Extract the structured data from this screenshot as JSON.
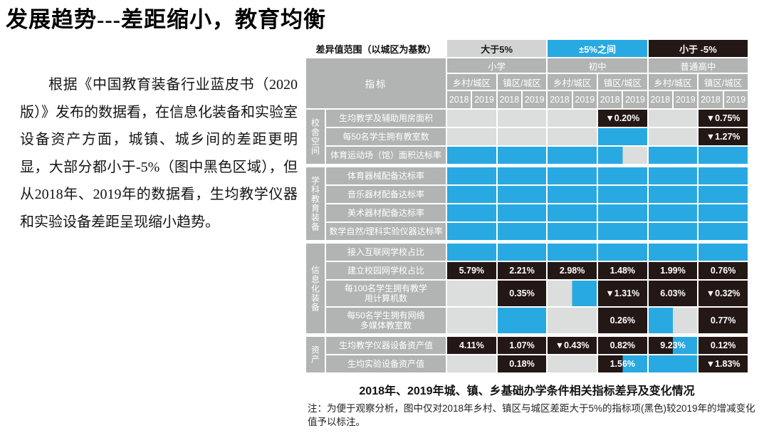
{
  "slide": {
    "title": "发展趋势---差距缩小，教育均衡",
    "paragraph": "根据《中国教育装备行业蓝皮书（2020版）》发布的数据看，在信息化装备和实验室设备资产方面，城镇、城乡间的差距更明显，大部分都小于-5%（图中黑色区域），但从2018年、2019年的数据看，生均教学仪器和实验设备差距呈现缩小趋势。",
    "caption": "2018年、2019年城、镇、乡基础办学条件相关指标差异及变化情况",
    "note": "注：为便于观察分析，图中仅对2018年乡村、镇区与城区差距大于5%的指标项(黑色)较2019年的增减变化值予以标注。"
  },
  "table": {
    "colors": {
      "gray": "#dcdddd",
      "blue": "#29a9e1",
      "black": "#231815",
      "header": "#b2b3b3"
    },
    "legend": {
      "label": "差异值范围（以城区为基数）",
      "items": [
        {
          "text": "大于5%",
          "bg": "#d2d3d3",
          "fg": "#1a1a1a"
        },
        {
          "text": "±5%之间",
          "bg": "#29a9e1",
          "fg": "#ffffff"
        },
        {
          "text": "小于 -5%",
          "bg": "#231815",
          "fg": "#ffffff"
        }
      ]
    },
    "header": {
      "indicator": "指标",
      "levels": [
        "小学",
        "初中",
        "普通高中"
      ],
      "subgroups": [
        "乡村/城区",
        "镇区/城区"
      ],
      "years": [
        "2018",
        "2019"
      ]
    },
    "groups": [
      {
        "label": "校舍空间",
        "rows": [
          {
            "label": "生均教学及辅助用房面积",
            "cells": [
              [
                "gray",
                "gray",
                ""
              ],
              [
                "gray",
                "gray",
                ""
              ],
              [
                "gray",
                "gray",
                ""
              ],
              [
                "black",
                "black",
                "▼0.20%"
              ],
              [
                "gray",
                "gray",
                ""
              ],
              [
                "black",
                "black",
                "▼0.75%"
              ]
            ]
          },
          {
            "label": "每50名学生拥有教室数",
            "cells": [
              [
                "gray",
                "gray",
                ""
              ],
              [
                "gray",
                "gray",
                ""
              ],
              [
                "gray",
                "gray",
                ""
              ],
              [
                "blue",
                "blue",
                ""
              ],
              [
                "gray",
                "gray",
                ""
              ],
              [
                "black",
                "black",
                "▼1.27%"
              ]
            ]
          },
          {
            "label": "体育运动场（馆）面积达标率",
            "cells": [
              [
                "blue",
                "blue",
                ""
              ],
              [
                "blue",
                "blue",
                ""
              ],
              [
                "blue",
                "blue",
                ""
              ],
              [
                "blue",
                "gray",
                ""
              ],
              [
                "blue",
                "blue",
                ""
              ],
              [
                "blue",
                "blue",
                ""
              ]
            ]
          }
        ]
      },
      {
        "label": "学科教育装备",
        "rows": [
          {
            "label": "体育器械配备达标率",
            "cells": [
              [
                "blue",
                "blue",
                ""
              ],
              [
                "blue",
                "blue",
                ""
              ],
              [
                "blue",
                "blue",
                ""
              ],
              [
                "blue",
                "blue",
                ""
              ],
              [
                "blue",
                "blue",
                ""
              ],
              [
                "blue",
                "blue",
                ""
              ]
            ]
          },
          {
            "label": "音乐器材配备达标率",
            "cells": [
              [
                "blue",
                "blue",
                ""
              ],
              [
                "blue",
                "blue",
                ""
              ],
              [
                "blue",
                "blue",
                ""
              ],
              [
                "blue",
                "blue",
                ""
              ],
              [
                "blue",
                "blue",
                ""
              ],
              [
                "blue",
                "blue",
                ""
              ]
            ]
          },
          {
            "label": "美术器材配备达标率",
            "cells": [
              [
                "blue",
                "blue",
                ""
              ],
              [
                "blue",
                "blue",
                ""
              ],
              [
                "blue",
                "blue",
                ""
              ],
              [
                "blue",
                "blue",
                ""
              ],
              [
                "blue",
                "blue",
                ""
              ],
              [
                "blue",
                "blue",
                ""
              ]
            ]
          },
          {
            "label": "数学自然/理科实验仪器达标率",
            "cells": [
              [
                "blue",
                "blue",
                ""
              ],
              [
                "blue",
                "blue",
                ""
              ],
              [
                "blue",
                "blue",
                ""
              ],
              [
                "blue",
                "blue",
                ""
              ],
              [
                "blue",
                "blue",
                ""
              ],
              [
                "blue",
                "blue",
                ""
              ]
            ]
          }
        ]
      },
      {
        "label": "信息化装备",
        "rows": [
          {
            "label": "接入互联网学校占比",
            "cells": [
              [
                "blue",
                "blue",
                ""
              ],
              [
                "blue",
                "blue",
                ""
              ],
              [
                "blue",
                "blue",
                ""
              ],
              [
                "blue",
                "blue",
                ""
              ],
              [
                "blue",
                "blue",
                ""
              ],
              [
                "blue",
                "blue",
                ""
              ]
            ]
          },
          {
            "label": "建立校园网学校占比",
            "cells": [
              [
                "black",
                "black",
                "5.79%"
              ],
              [
                "black",
                "black",
                "2.21%"
              ],
              [
                "black",
                "black",
                "2.98%"
              ],
              [
                "black",
                "black",
                "1.48%"
              ],
              [
                "black",
                "black",
                "1.99%"
              ],
              [
                "black",
                "black",
                "0.76%"
              ]
            ]
          },
          {
            "label": "每100名学生拥有教学\n用计算机数",
            "tall": true,
            "cells": [
              [
                "gray",
                "gray",
                ""
              ],
              [
                "black",
                "black",
                "0.35%"
              ],
              [
                "gray",
                "blue",
                ""
              ],
              [
                "black",
                "black",
                "▼1.31%"
              ],
              [
                "black",
                "black",
                "6.03%"
              ],
              [
                "black",
                "black",
                "▼0.32%"
              ]
            ]
          },
          {
            "label": "每50名学生拥有网络\n多媒体教室数",
            "tall": true,
            "cells": [
              [
                "gray",
                "gray",
                ""
              ],
              [
                "blue",
                "blue",
                ""
              ],
              [
                "gray",
                "gray",
                ""
              ],
              [
                "black",
                "black",
                "0.26%"
              ],
              [
                "blue",
                "gray",
                ""
              ],
              [
                "black",
                "black",
                "0.77%"
              ]
            ]
          }
        ]
      },
      {
        "label": "资产",
        "rows": [
          {
            "label": "生均教学仪器设备资产值",
            "cells": [
              [
                "black",
                "black",
                "4.11%"
              ],
              [
                "black",
                "black",
                "1.07%"
              ],
              [
                "black",
                "black",
                "▼0.43%"
              ],
              [
                "black",
                "black",
                "0.82%"
              ],
              [
                "black",
                "blue",
                "9.23%"
              ],
              [
                "black",
                "black",
                "0.12%"
              ]
            ]
          },
          {
            "label": "生均实验设备资产值",
            "cells": [
              [
                "gray",
                "gray",
                ""
              ],
              [
                "black",
                "black",
                "0.18%"
              ],
              [
                "gray",
                "gray",
                ""
              ],
              [
                "black",
                "blue",
                "1.56%"
              ],
              [
                "blue",
                "blue",
                ""
              ],
              [
                "black",
                "black",
                "▼1.83%"
              ]
            ]
          }
        ]
      }
    ]
  }
}
